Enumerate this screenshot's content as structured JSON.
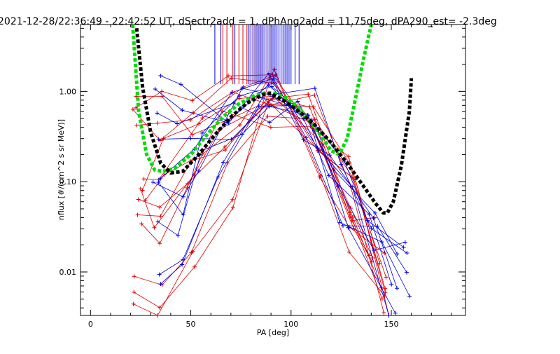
{
  "chart_data": {
    "type": "line",
    "title": "2021-12-28/22:36:49 - 22:42:52 UT, dSectr2add = 1, dPhAng2add = 11.75deg, dPA290_est=  -2.3deg",
    "xlabel": "PA [deg]",
    "ylabel": "nflux [#/(cm^2 s sr MeV)]",
    "xlim": [
      -5,
      187
    ],
    "ylim": [
      0.0033,
      5.5
    ],
    "yscale": "log",
    "xticks": [
      0,
      50,
      100,
      150
    ],
    "yticks": [
      {
        "value": 0.01,
        "label": "0.01"
      },
      {
        "value": 0.1,
        "label": "0.10"
      },
      {
        "value": 1.0,
        "label": "1.00"
      }
    ],
    "grid": false,
    "series": [
      {
        "color": "#00dd00",
        "style": "thick-dashed",
        "x": [
          21,
          24,
          28,
          32,
          36,
          42,
          50,
          58,
          66,
          74,
          82,
          88,
          92,
          98,
          104,
          110,
          116,
          120,
          124,
          128,
          132,
          136,
          140
        ],
        "y": [
          5.5,
          0.6,
          0.2,
          0.135,
          0.13,
          0.14,
          0.2,
          0.33,
          0.52,
          0.73,
          0.9,
          0.97,
          0.95,
          0.84,
          0.65,
          0.45,
          0.3,
          0.22,
          0.2,
          0.3,
          0.8,
          2.2,
          5.5
        ]
      },
      {
        "color": "#000000",
        "style": "thick-dashed",
        "x": [
          23,
          26,
          30,
          35,
          40,
          46,
          54,
          62,
          70,
          78,
          86,
          90,
          96,
          104,
          112,
          120,
          128,
          136,
          142,
          146,
          148,
          151,
          155,
          159,
          160
        ],
        "y": [
          5.0,
          1.1,
          0.35,
          0.16,
          0.125,
          0.13,
          0.2,
          0.33,
          0.52,
          0.74,
          0.92,
          0.95,
          0.8,
          0.6,
          0.42,
          0.27,
          0.16,
          0.09,
          0.058,
          0.045,
          0.045,
          0.06,
          0.15,
          0.6,
          1.4
        ]
      }
    ],
    "scan_lines": {
      "red_color": "#dd0000",
      "blue_color": "#0000dd",
      "red_pitch_angles": [
        21,
        24,
        28,
        30,
        32,
        34,
        36,
        38,
        40,
        42,
        44,
        46,
        48,
        50
      ],
      "blue_pitch_angles": [
        26,
        29,
        33,
        35,
        37,
        41,
        43,
        47,
        49,
        52
      ]
    },
    "vertical_markers": {
      "y_bottom": 1.2,
      "y_top": 5.5,
      "red_x": [
        66,
        68,
        71,
        74,
        76,
        78,
        79,
        81,
        82,
        83,
        84,
        85,
        86,
        87,
        88,
        90
      ],
      "blue_x": [
        62,
        65,
        72,
        79,
        80,
        81,
        82,
        83,
        84,
        85,
        86,
        87,
        88,
        89,
        90,
        91,
        92,
        93,
        94,
        95,
        96,
        97,
        98,
        99,
        100,
        102,
        104
      ]
    }
  }
}
